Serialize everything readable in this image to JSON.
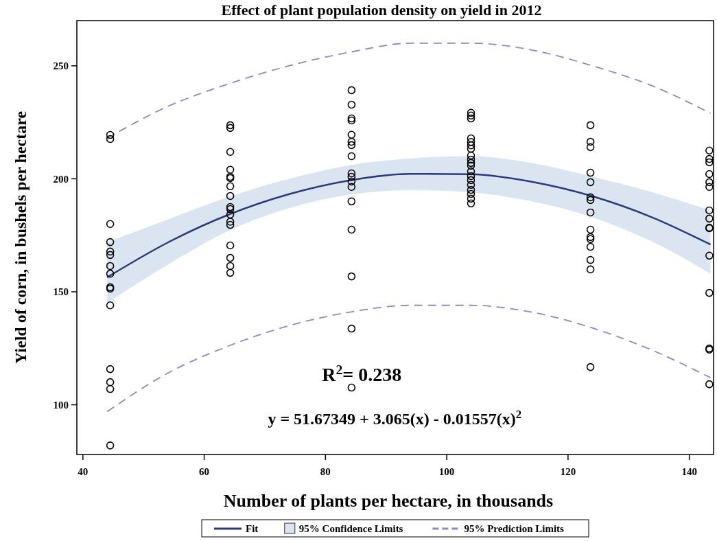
{
  "chart_data": {
    "type": "scatter",
    "title": "Effect of plant population density on yield in 2012",
    "xlabel": "Number of plants per hectare, in thousands",
    "ylabel": "Yield of corn, in bushels per hectare",
    "xlim": [
      39,
      144
    ],
    "xticks": [
      40,
      60,
      80,
      100,
      120,
      140
    ],
    "ylim": [
      78,
      270
    ],
    "yticks": [
      100,
      150,
      200,
      250
    ],
    "grid": false,
    "legend": "bottom",
    "marker": "circle",
    "annotations": [
      {
        "text": "R$^{2}$= 0.238"
      },
      {
        "text": "y = 51.67349 + 3.065(x) - 0.01557(x)$^{2}$"
      },
      {
        "text": "95% Confidence Limits"
      }
    ],
    "series": [
      {
        "type": "line",
        "name": "Fit",
        "color": "#2b3a7a",
        "line_style": "solid",
        "marker": "none",
        "x": [
          44,
          54,
          64,
          74,
          84,
          94,
          104,
          114,
          124,
          134,
          143.5
        ],
        "values": [
          156.4,
          171.8,
          184.1,
          193.2,
          199.3,
          202.2,
          202,
          198.7,
          192.3,
          182.8,
          170.9
        ],
        "lower": [
          145,
          162,
          177,
          187,
          193,
          195,
          194,
          190,
          183,
          172,
          158
        ],
        "upper": [
          172,
          182,
          192,
          200,
          206,
          209,
          210,
          207,
          201,
          194,
          186
        ]
      },
      {
        "type": "line",
        "name": "95% Prediction Limits",
        "color": "#8c89c4",
        "line_style": "dashed",
        "marker": "none",
        "x": [
          44,
          54,
          64,
          74,
          84,
          94,
          104,
          114,
          124,
          134,
          143.5
        ],
        "values": [
          218,
          232,
          242,
          250,
          256,
          260,
          260,
          257,
          250,
          241,
          229
        ]
      },
      {
        "type": "line",
        "color": "#8c89c4",
        "line_style": "dashed",
        "marker": "none",
        "x": [
          44,
          54,
          64,
          74,
          84,
          94,
          104,
          114,
          124,
          134,
          143.5
        ],
        "values": [
          97,
          114,
          126,
          135,
          141,
          144,
          144,
          141,
          134,
          124,
          112
        ]
      },
      {
        "color": "#000000",
        "x": [
          44.5,
          44.5,
          44.5,
          44.5,
          44.5,
          44.5,
          44.5,
          44.5,
          44.5,
          44.5,
          44.5,
          44.5,
          44.5,
          44.5,
          44.5,
          64.3,
          64.3,
          64.3,
          64.3,
          64.3,
          64.3,
          64.3,
          64.3,
          64.3,
          64.3,
          64.3,
          64.3,
          64.3,
          64.3,
          64.3,
          64.3,
          64.3,
          84.3,
          84.3,
          84.3,
          84.3,
          84.3,
          84.3,
          84.3,
          84.3,
          84.3,
          84.3,
          84.3,
          84.3,
          84.3,
          84.3,
          84.3,
          84.3,
          84.3,
          104,
          104,
          104,
          104,
          104,
          104,
          104,
          104,
          104,
          104,
          104,
          104,
          104,
          104,
          104,
          104,
          104,
          104,
          104,
          123.7,
          123.7,
          123.7,
          123.7,
          123.7,
          123.7,
          123.7,
          123.7,
          123.7,
          123.7,
          123.7,
          123.7,
          123.7,
          123.7,
          123.7,
          143.3,
          143.3,
          143.3,
          143.3,
          143.3,
          143.3,
          143.3,
          143.3,
          143.3,
          143.3,
          143.3,
          143.3,
          143.3,
          143.3,
          143.3
        ],
        "values": [
          219.4,
          217.6,
          180,
          172,
          167.8,
          166.3,
          161.4,
          158,
          152,
          151.4,
          144,
          115.8,
          110,
          107,
          82,
          223.7,
          222.5,
          211.9,
          204,
          200.9,
          200.3,
          196.7,
          192.4,
          187.5,
          186.6,
          184.2,
          181,
          179.6,
          170.5,
          165,
          161.4,
          158.4,
          239.2,
          232.8,
          226.7,
          225.8,
          219.5,
          216.4,
          214.9,
          210,
          202.4,
          200.9,
          198.8,
          196.4,
          190,
          177.5,
          156.8,
          133.7,
          107.6,
          229.2,
          228,
          226.7,
          217.9,
          216.3,
          214.8,
          213.3,
          210.3,
          208.5,
          207,
          205.8,
          203.3,
          201.2,
          199.4,
          197.3,
          195.1,
          193.3,
          191.2,
          189.1,
          223.7,
          216.4,
          214,
          202.7,
          198.5,
          191.8,
          190.6,
          185.1,
          177.5,
          174.2,
          173.3,
          169.9,
          164.1,
          159.9,
          116.7,
          212.5,
          208.8,
          207.3,
          202.1,
          198.5,
          196.4,
          186,
          182.4,
          178.4,
          178.1,
          166,
          149.5,
          124.9,
          124.4,
          109.1
        ]
      }
    ]
  }
}
